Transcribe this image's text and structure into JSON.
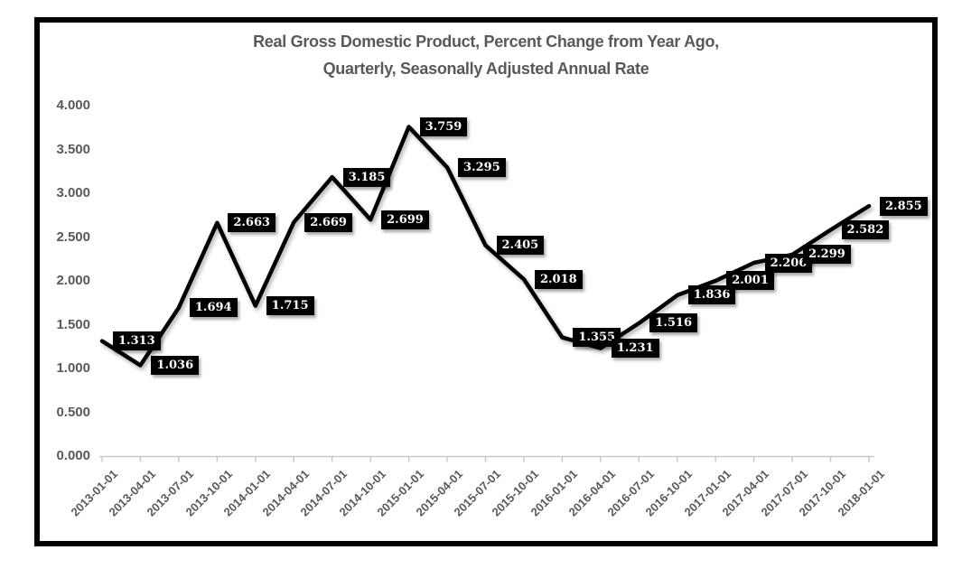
{
  "title": {
    "line1": "Real Gross Domestic Product, Percent Change from Year Ago,",
    "line2": "Quarterly, Seasonally Adjusted Annual Rate"
  },
  "chart_data": {
    "type": "line",
    "title": "Real Gross Domestic Product, Percent Change from Year Ago, Quarterly, Seasonally Adjusted Annual Rate",
    "x": [
      "2013-01-01",
      "2013-04-01",
      "2013-07-01",
      "2013-10-01",
      "2014-01-01",
      "2014-04-01",
      "2014-07-01",
      "2014-10-01",
      "2015-01-01",
      "2015-04-01",
      "2015-07-01",
      "2015-10-01",
      "2016-01-01",
      "2016-04-01",
      "2016-07-01",
      "2016-10-01",
      "2017-01-01",
      "2017-04-01",
      "2017-07-01",
      "2017-10-01",
      "2018-01-01"
    ],
    "values": [
      1.313,
      1.036,
      1.694,
      2.663,
      1.715,
      2.669,
      3.185,
      2.699,
      3.759,
      3.295,
      2.405,
      2.018,
      1.355,
      1.231,
      1.516,
      1.836,
      2.001,
      2.206,
      2.299,
      2.582,
      2.855
    ],
    "point_labels": [
      "1.313",
      "1.036",
      "1.694",
      "2.663",
      "1.715",
      "2.669",
      "3.185",
      "2.699",
      "3.759",
      "3.295",
      "2.405",
      "2.018",
      "1.355",
      "1.231",
      "1.516",
      "1.836",
      "2.001",
      "2.206",
      "2.299",
      "2.582",
      "2.855"
    ],
    "yticks": [
      {
        "value": 0.0,
        "label": "0.000"
      },
      {
        "value": 0.5,
        "label": "0.500"
      },
      {
        "value": 1.0,
        "label": "1.000"
      },
      {
        "value": 1.5,
        "label": "1.500"
      },
      {
        "value": 2.0,
        "label": "2.000"
      },
      {
        "value": 2.5,
        "label": "2.500"
      },
      {
        "value": 3.0,
        "label": "3.000"
      },
      {
        "value": 3.5,
        "label": "3.500"
      },
      {
        "value": 4.0,
        "label": "4.000"
      }
    ],
    "ylim": [
      0,
      4
    ],
    "xlabel": "",
    "ylabel": "",
    "grid": false,
    "legend": "none",
    "colors": {
      "line": "#000000",
      "label_bg": "#000000",
      "label_text": "#ffffff",
      "axis_line": "#c9c9c9",
      "text": "#595959",
      "frame_border": "#000000",
      "background": "#ffffff"
    }
  }
}
